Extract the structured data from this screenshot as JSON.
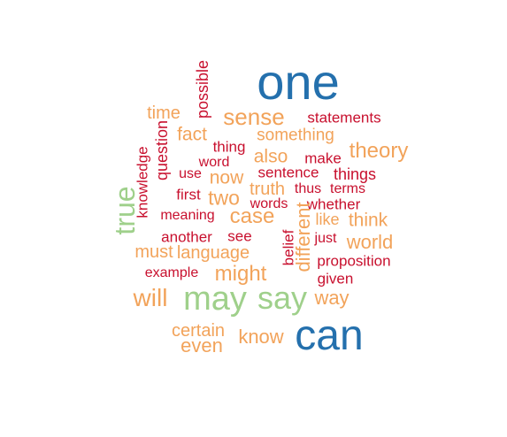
{
  "palette": {
    "blue": "#2470ad",
    "green": "#9fd08b",
    "orange": "#f2a35a",
    "red": "#c8102e"
  },
  "words": [
    {
      "text": "one",
      "color": "blue"
    },
    {
      "text": "can",
      "color": "blue"
    },
    {
      "text": "may",
      "color": "green"
    },
    {
      "text": "say",
      "color": "green"
    },
    {
      "text": "true",
      "color": "green"
    },
    {
      "text": "possible",
      "color": "red"
    },
    {
      "text": "time",
      "color": "orange"
    },
    {
      "text": "sense",
      "color": "orange"
    },
    {
      "text": "statements",
      "color": "red"
    },
    {
      "text": "question",
      "color": "red"
    },
    {
      "text": "fact",
      "color": "orange"
    },
    {
      "text": "thing",
      "color": "red"
    },
    {
      "text": "something",
      "color": "orange"
    },
    {
      "text": "theory",
      "color": "orange"
    },
    {
      "text": "also",
      "color": "orange"
    },
    {
      "text": "make",
      "color": "red"
    },
    {
      "text": "word",
      "color": "red"
    },
    {
      "text": "knowledge",
      "color": "red"
    },
    {
      "text": "use",
      "color": "red"
    },
    {
      "text": "now",
      "color": "orange"
    },
    {
      "text": "sentence",
      "color": "red"
    },
    {
      "text": "things",
      "color": "red"
    },
    {
      "text": "truth",
      "color": "orange"
    },
    {
      "text": "thus",
      "color": "red"
    },
    {
      "text": "terms",
      "color": "red"
    },
    {
      "text": "first",
      "color": "red"
    },
    {
      "text": "two",
      "color": "orange"
    },
    {
      "text": "words",
      "color": "red"
    },
    {
      "text": "whether",
      "color": "red"
    },
    {
      "text": "meaning",
      "color": "red"
    },
    {
      "text": "case",
      "color": "orange"
    },
    {
      "text": "different",
      "color": "orange"
    },
    {
      "text": "like",
      "color": "orange"
    },
    {
      "text": "think",
      "color": "orange"
    },
    {
      "text": "another",
      "color": "red"
    },
    {
      "text": "see",
      "color": "red"
    },
    {
      "text": "just",
      "color": "red"
    },
    {
      "text": "world",
      "color": "orange"
    },
    {
      "text": "must",
      "color": "orange"
    },
    {
      "text": "language",
      "color": "orange"
    },
    {
      "text": "belief",
      "color": "red"
    },
    {
      "text": "proposition",
      "color": "red"
    },
    {
      "text": "example",
      "color": "red"
    },
    {
      "text": "might",
      "color": "orange"
    },
    {
      "text": "given",
      "color": "red"
    },
    {
      "text": "will",
      "color": "orange"
    },
    {
      "text": "way",
      "color": "orange"
    },
    {
      "text": "certain",
      "color": "orange"
    },
    {
      "text": "know",
      "color": "orange"
    },
    {
      "text": "even",
      "color": "orange"
    }
  ]
}
